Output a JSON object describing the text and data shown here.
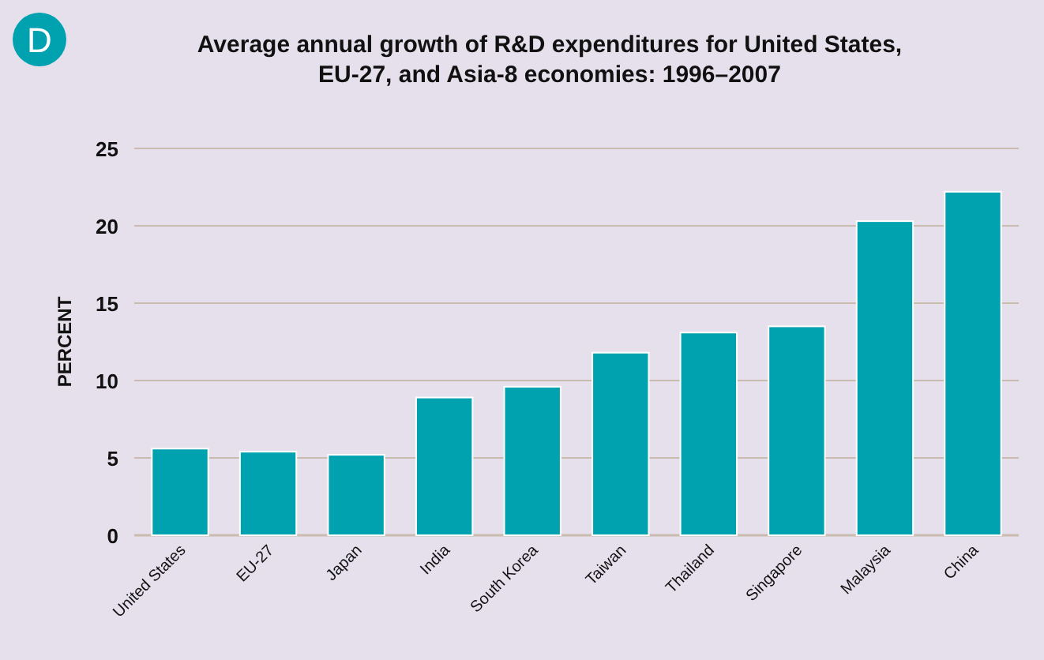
{
  "chart_data": {
    "type": "bar",
    "title": "Average annual growth of R&D expenditures for United States, EU-27, and Asia-8 economies: 1996–2007",
    "ylabel": "PERCENT",
    "annotations": [
      "D"
    ],
    "categories": [
      "United States",
      "EU-27",
      "Japan",
      "India",
      "South Korea",
      "Taiwan",
      "Thailand",
      "Singapore",
      "Malaysia",
      "China"
    ],
    "values": [
      5.6,
      5.4,
      5.2,
      8.9,
      9.6,
      11.8,
      13.1,
      13.5,
      20.3,
      22.2
    ],
    "color": "#00a2b0",
    "ylim": [
      0,
      25
    ],
    "yticks": [
      0,
      5,
      10,
      15,
      20,
      25
    ],
    "grid": "y"
  }
}
